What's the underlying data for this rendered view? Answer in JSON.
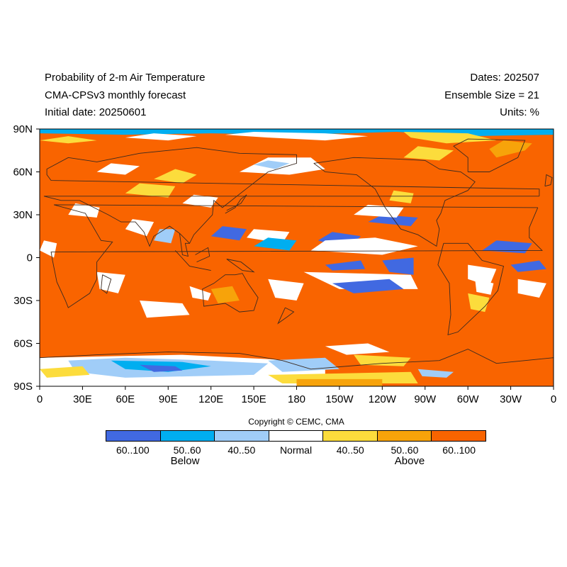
{
  "header": {
    "title_line1": "Probability of 2-m Air Temperature",
    "title_line2": "CMA-CPSv3 monthly forecast",
    "title_line3": "Initial date: 20250601",
    "dates": "Dates: 202507",
    "ensemble": "Ensemble Size = 21",
    "units": "Units: %"
  },
  "axes": {
    "lat_labels": [
      "90N",
      "60N",
      "30N",
      "0",
      "30S",
      "60S",
      "90S"
    ],
    "lon_labels": [
      "0",
      "30E",
      "60E",
      "90E",
      "120E",
      "150E",
      "180",
      "150W",
      "120W",
      "90W",
      "60W",
      "30W",
      "0"
    ]
  },
  "copyright": "Copyright © CEMC, CMA",
  "legend": {
    "categories": [
      {
        "label": "60..100",
        "color": "#4169e1"
      },
      {
        "label": "50..60",
        "color": "#00aef0"
      },
      {
        "label": "40..50",
        "color": "#a0cdf8"
      },
      {
        "label": "Normal",
        "color": "#ffffff"
      },
      {
        "label": "40..50",
        "color": "#fcdc3c"
      },
      {
        "label": "50..60",
        "color": "#f7a30a"
      },
      {
        "label": "60..100",
        "color": "#f96400"
      }
    ],
    "below_label": "Below",
    "above_label": "Above"
  },
  "map_colors": {
    "above_strong": "#f96400",
    "above_mid": "#f7a30a",
    "above_weak": "#fcdc3c",
    "normal": "#ffffff",
    "below_weak": "#a0cdf8",
    "below_mid": "#00aef0",
    "below_strong": "#4169e1",
    "coastline": "#3a2a20"
  }
}
